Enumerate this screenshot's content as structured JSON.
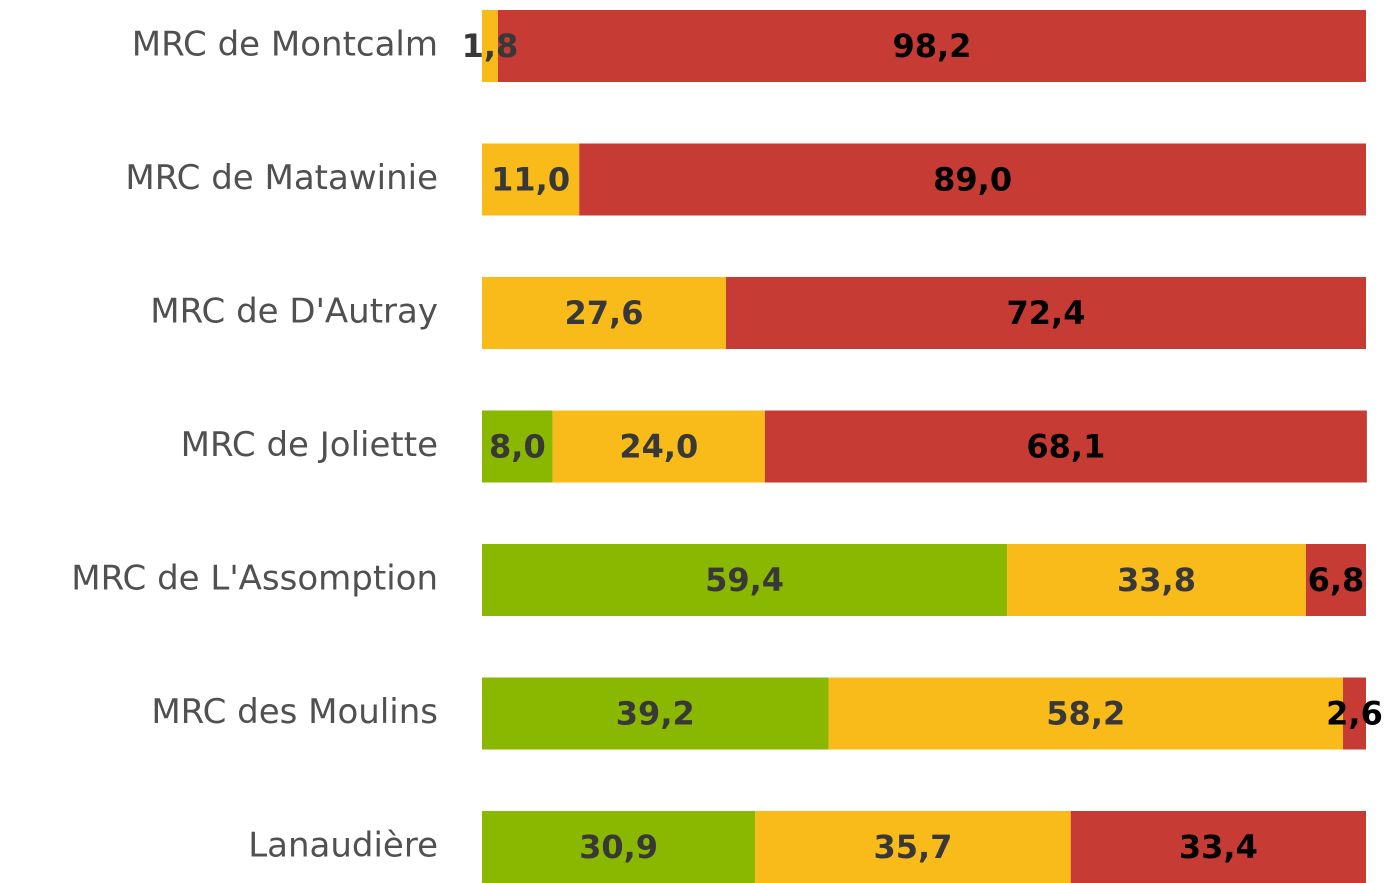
{
  "chart_data": {
    "type": "stacked-bar",
    "orientation": "horizontal",
    "categories": [
      "MRC de Montcalm",
      "MRC de Matawinie",
      "MRC de D'Autray",
      "MRC de Joliette",
      "MRC de L'Assomption",
      "MRC des Moulins",
      "Lanaudière"
    ],
    "xlim": [
      0,
      100
    ],
    "series": [
      {
        "color": "#8ab800",
        "label_color": "#383838",
        "values": [
          null,
          null,
          null,
          8.0,
          59.4,
          39.2,
          30.9
        ],
        "value_labels": [
          null,
          null,
          null,
          "8,0",
          "59,4",
          "39,2",
          "30,9"
        ]
      },
      {
        "color": "#f8bb1a",
        "label_color": "#383838",
        "values": [
          1.8,
          11.0,
          27.6,
          24.0,
          33.8,
          58.2,
          35.7
        ],
        "value_labels": [
          "1,8",
          "11,0",
          "27,6",
          "24,0",
          "33,8",
          "58,2",
          "35,7"
        ]
      },
      {
        "color": "#c63b33",
        "label_color": "#000000",
        "values": [
          98.2,
          89.0,
          72.4,
          68.1,
          6.8,
          2.6,
          33.4
        ],
        "value_labels": [
          "98,2",
          "89,0",
          "72,4",
          "68,1",
          "6,8",
          "2,6",
          "33,4"
        ]
      }
    ]
  }
}
